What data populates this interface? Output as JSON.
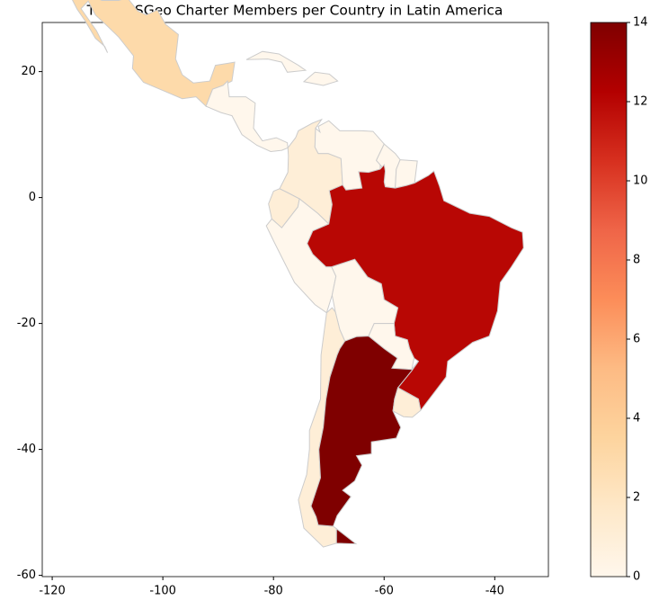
{
  "chart_data": {
    "type": "choropleth",
    "title": "Total OSGeo Charter Members per Country in Latin America",
    "categories": [
      null,
      null,
      null,
      null,
      null,
      null,
      null,
      null,
      null,
      null,
      null,
      null,
      null,
      null,
      null,
      null
    ],
    "values": [
      3,
      0,
      0,
      0,
      1,
      0,
      0,
      0,
      1,
      0,
      0,
      12,
      0,
      1,
      14,
      1
    ],
    "colormap": [
      "#fff7ec",
      "#fee8c8",
      "#fdd49e",
      "#fdbb84",
      "#fc8d59",
      "#ef6548",
      "#d7301f",
      "#b30000",
      "#7f0000"
    ],
    "edge_color": "#cccccc",
    "xlim": [
      -121.8,
      -30.3
    ],
    "xticks": [
      -120,
      -100,
      -80,
      -60,
      -40
    ],
    "ylim": [
      -60.2,
      27.8
    ],
    "yticks": [
      20,
      0,
      -20,
      -40,
      -60
    ],
    "colorbar_lim": [
      0,
      14
    ],
    "colorbar_ticks": [
      0,
      2,
      4,
      6,
      8,
      10,
      12,
      14
    ]
  }
}
